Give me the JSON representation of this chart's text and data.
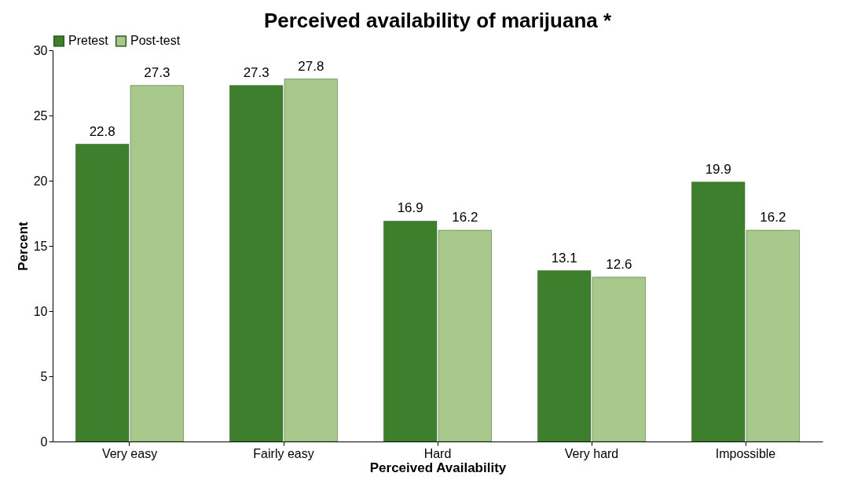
{
  "chart_data": {
    "type": "bar",
    "title": "Perceived availability of marijuana *",
    "xlabel": "Perceived Availability",
    "ylabel": "Percent",
    "categories": [
      "Very easy",
      "Fairly easy",
      "Hard",
      "Very hard",
      "Impossible"
    ],
    "series": [
      {
        "name": "Pretest",
        "color": "#3d7f2c",
        "values": [
          22.8,
          27.3,
          16.9,
          13.1,
          19.9
        ]
      },
      {
        "name": "Post-test",
        "color": "#a9c98c",
        "values": [
          27.3,
          27.8,
          16.2,
          12.6,
          16.2
        ]
      }
    ],
    "ylim": [
      0,
      30
    ],
    "yticks": [
      0,
      5,
      10,
      15,
      20,
      25,
      30
    ],
    "grid": false,
    "legend": "top",
    "data_labels": true
  }
}
